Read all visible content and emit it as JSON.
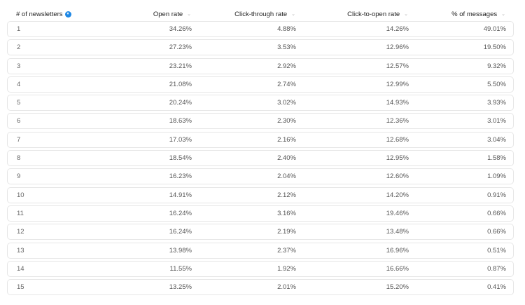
{
  "columns": [
    {
      "label": "# of newsletters",
      "sort": "active"
    },
    {
      "label": "Open rate",
      "sort": "inactive"
    },
    {
      "label": "Click-through rate",
      "sort": "inactive"
    },
    {
      "label": "Click-to-open rate",
      "sort": "inactive"
    },
    {
      "label": "% of messages",
      "sort": "inactive"
    }
  ],
  "icons": {
    "active_sort": "chevron-down-circle-icon",
    "inactive_sort": "chevron-down-icon",
    "accent_color": "#1e88e5"
  },
  "rows": [
    [
      "1",
      "34.26%",
      "4.88%",
      "14.26%",
      "49.01%"
    ],
    [
      "2",
      "27.23%",
      "3.53%",
      "12.96%",
      "19.50%"
    ],
    [
      "3",
      "23.21%",
      "2.92%",
      "12.57%",
      "9.32%"
    ],
    [
      "4",
      "21.08%",
      "2.74%",
      "12.99%",
      "5.50%"
    ],
    [
      "5",
      "20.24%",
      "3.02%",
      "14.93%",
      "3.93%"
    ],
    [
      "6",
      "18.63%",
      "2.30%",
      "12.36%",
      "3.01%"
    ],
    [
      "7",
      "17.03%",
      "2.16%",
      "12.68%",
      "3.04%"
    ],
    [
      "8",
      "18.54%",
      "2.40%",
      "12.95%",
      "1.58%"
    ],
    [
      "9",
      "16.23%",
      "2.04%",
      "12.60%",
      "1.09%"
    ],
    [
      "10",
      "14.91%",
      "2.12%",
      "14.20%",
      "0.91%"
    ],
    [
      "11",
      "16.24%",
      "3.16%",
      "19.46%",
      "0.66%"
    ],
    [
      "12",
      "16.24%",
      "2.19%",
      "13.48%",
      "0.66%"
    ],
    [
      "13",
      "13.98%",
      "2.37%",
      "16.96%",
      "0.51%"
    ],
    [
      "14",
      "11.55%",
      "1.92%",
      "16.66%",
      "0.87%"
    ],
    [
      "15",
      "13.25%",
      "2.01%",
      "15.20%",
      "0.41%"
    ]
  ]
}
